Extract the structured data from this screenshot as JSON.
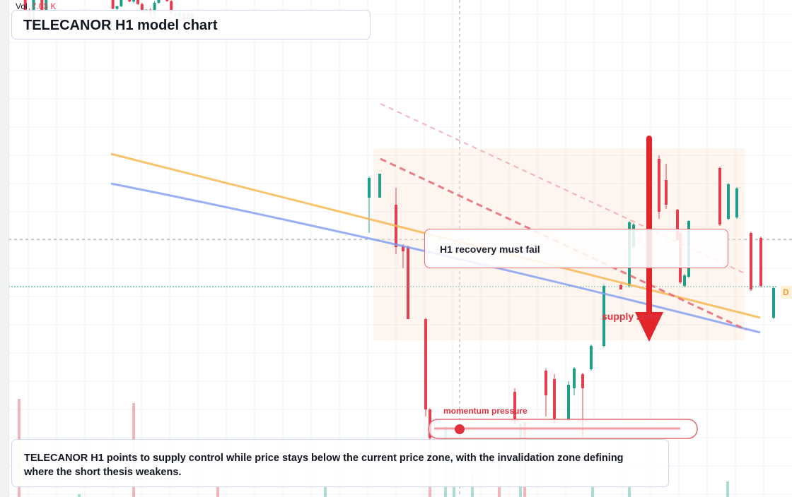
{
  "header": {
    "volume_label": "Vol",
    "volume_value": "7.03 K",
    "title": "TELECANOR H1 model chart"
  },
  "annotations": {
    "callout": "H1 recovery must fail",
    "zone_label": "supply zone",
    "momentum_label": "momentum pressure",
    "price_tag": "D"
  },
  "summary": "TELECANOR H1 points to supply control while price stays below the current price zone, with the invalidation zone defining where the short thesis weakens.",
  "colors": {
    "bullish": "#1f9e89",
    "bearish": "#e53e4f",
    "supply_zone": "#fde7d6",
    "trendline_orange": "#f7b955",
    "trendline_blue": "#7f9cf0",
    "arrow": "#e0252b"
  },
  "chart_data": {
    "type": "candlestick",
    "symbol": "TELECANOR",
    "timeframe": "H1",
    "price_range": [
      0,
      100
    ],
    "grid": true,
    "legend": "none",
    "candles": [
      [
        100.1,
        94.1,
        94.3,
        100.4
      ],
      [
        94.3,
        94.1,
        94.3,
        93.9
      ],
      [
        94.3,
        94.1,
        94.3,
        93.9
      ],
      [
        94.3,
        91.0,
        94.4,
        90.9
      ],
      [
        91.0,
        87.5,
        91.5,
        87.4
      ],
      [
        87.5,
        94.3,
        94.6,
        87.4
      ],
      [
        94.3,
        94.3,
        94.3,
        94.2
      ],
      [
        94.3,
        91.0,
        94.3,
        90.5
      ],
      [
        91.0,
        94.3,
        94.4,
        90.2
      ],
      [
        94.3,
        94.5,
        94.8,
        94.2
      ],
      [
        94.5,
        94.1,
        94.3,
        93.8
      ],
      [
        94.1,
        94.3,
        94.4,
        94.0
      ],
      [
        94.3,
        94.3,
        94.4,
        94.2
      ],
      [
        94.3,
        94.5,
        94.8,
        94.2
      ],
      [
        94.5,
        94.5,
        94.8,
        94.4
      ],
      [
        94.5,
        94.5,
        94.8,
        94.0
      ],
      [
        94.5,
        94.5,
        94.8,
        94.2
      ],
      [
        94.5,
        94.2,
        94.4,
        94.0
      ],
      [
        94.2,
        94.2,
        94.4,
        94.0
      ],
      [
        94.2,
        94.2,
        94.4,
        94.0
      ],
      [
        94.2,
        94.1,
        94.3,
        94.0
      ],
      [
        94.1,
        94.1,
        94.3,
        94.0
      ],
      [
        94.1,
        94.2,
        94.3,
        94.0
      ],
      [
        94.2,
        94.3,
        94.4,
        94.0
      ],
      [
        94.3,
        91.4,
        94.4,
        91.3
      ],
      [
        91.4,
        92.0,
        92.1,
        91.0
      ],
      [
        92.0,
        97.0,
        97.7,
        91.8
      ],
      [
        97.0,
        96.8,
        97.2,
        96.4
      ],
      [
        96.8,
        93.1,
        97.0,
        92.9
      ],
      [
        93.1,
        94.8,
        95.0,
        92.7
      ],
      [
        94.8,
        92.5,
        95.3,
        92.3
      ],
      [
        92.5,
        90.7,
        92.8,
        90.6
      ],
      [
        90.7,
        91.2,
        91.3,
        90.5
      ],
      [
        91.2,
        89.9,
        91.5,
        89.7
      ],
      [
        89.9,
        92.8,
        93.2,
        88.6
      ],
      [
        92.8,
        94.4,
        94.8,
        92.6
      ],
      [
        94.4,
        96.0,
        96.3,
        94.2
      ],
      [
        96.0,
        93.2,
        96.3,
        93.0
      ],
      [
        93.2,
        90.2,
        93.4,
        90.0
      ],
      [
        90.2,
        89.6,
        90.6,
        89.4
      ],
      [
        89.6,
        90.4,
        90.7,
        89.3
      ],
      [
        90.4,
        88.4,
        90.6,
        88.2
      ],
      [
        88.4,
        90.3,
        90.5,
        88.1
      ],
      [
        90.3,
        89.0,
        90.6,
        88.7
      ]
    ],
    "volume_peaks": [
      "7.03 K"
    ]
  }
}
